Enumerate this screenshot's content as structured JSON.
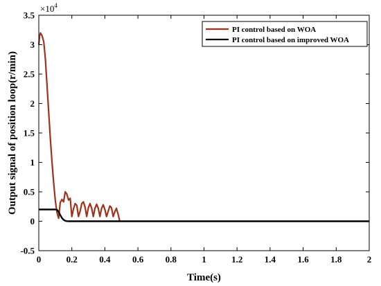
{
  "chart_data": {
    "type": "line",
    "xlabel": "Time(s)",
    "ylabel": "Output signal of position loop(r/min)",
    "xlim": [
      0,
      2
    ],
    "ylim": [
      -5000,
      35000
    ],
    "x_ticks": [
      0,
      0.2,
      0.4,
      0.6,
      0.8,
      1,
      1.2,
      1.4,
      1.6,
      1.8,
      2
    ],
    "x_tick_labels": [
      "0",
      "0.2",
      "0.4",
      "0.6",
      "0.8",
      "1",
      "1.2",
      "1.4",
      "1.6",
      "1.8",
      "2"
    ],
    "y_ticks": [
      -5000,
      0,
      5000,
      10000,
      15000,
      20000,
      25000,
      30000,
      35000
    ],
    "y_tick_labels": [
      "-0.5",
      "0",
      "0.5",
      "1",
      "1.5",
      "2",
      "2.5",
      "3",
      "3.5"
    ],
    "y_multiplier_base": "×10",
    "y_multiplier_exp": "4",
    "grid": false,
    "legend_position": "top-right",
    "series": [
      {
        "name": "PI control based on WOA",
        "color": "#a0311a",
        "x": [
          0,
          0.005,
          0.01,
          0.02,
          0.03,
          0.04,
          0.05,
          0.06,
          0.07,
          0.08,
          0.09,
          0.1,
          0.11,
          0.12,
          0.13,
          0.14,
          0.15,
          0.16,
          0.17,
          0.18,
          0.19,
          0.2,
          0.21,
          0.22,
          0.23,
          0.24,
          0.25,
          0.26,
          0.27,
          0.28,
          0.29,
          0.3,
          0.31,
          0.32,
          0.33,
          0.34,
          0.35,
          0.36,
          0.37,
          0.38,
          0.39,
          0.4,
          0.41,
          0.42,
          0.43,
          0.44,
          0.45,
          0.46,
          0.47,
          0.48,
          0.49
        ],
        "y": [
          30000,
          31500,
          32000,
          31500,
          30500,
          27500,
          23000,
          18500,
          14000,
          10000,
          6500,
          3500,
          1500,
          500,
          3200,
          3700,
          3300,
          5000,
          4600,
          3600,
          3900,
          800,
          2100,
          3000,
          2700,
          800,
          1700,
          3000,
          3300,
          2400,
          800,
          2300,
          3000,
          2200,
          800,
          2200,
          2900,
          2200,
          800,
          2200,
          2800,
          2000,
          800,
          1700,
          2600,
          2300,
          800,
          1600,
          2200,
          1200,
          0
        ]
      },
      {
        "name": "PI control based on improved WOA",
        "color": "#000000",
        "x": [
          0,
          0.02,
          0.05,
          0.08,
          0.1,
          0.11,
          0.12,
          0.13,
          0.14,
          0.15,
          0.16,
          0.17,
          0.18,
          0.2,
          0.3,
          0.5,
          1,
          1.5,
          2
        ],
        "y": [
          2000,
          2000,
          2000,
          2000,
          2000,
          1950,
          1600,
          1050,
          550,
          250,
          80,
          20,
          0,
          0,
          0,
          0,
          0,
          0,
          0
        ]
      }
    ]
  }
}
